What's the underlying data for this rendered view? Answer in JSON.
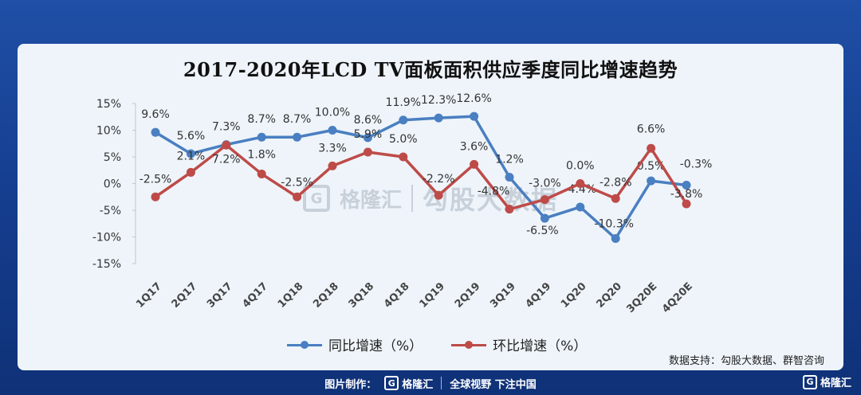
{
  "chart_data": {
    "type": "line",
    "title": "2017-2020年LCD TV面板面积供应季度同比增速趋势",
    "categories": [
      "1Q17",
      "2Q17",
      "3Q17",
      "4Q17",
      "1Q18",
      "2Q18",
      "3Q18",
      "4Q18",
      "1Q19",
      "2Q19",
      "3Q19",
      "4Q19",
      "1Q20",
      "2Q20",
      "3Q20E",
      "4Q20E"
    ],
    "series": [
      {
        "name": "同比增速（%）",
        "color": "#4a7fc1",
        "values": [
          9.6,
          5.6,
          7.3,
          8.7,
          8.7,
          10.0,
          8.6,
          11.9,
          12.3,
          12.6,
          1.2,
          -6.5,
          -4.4,
          -10.3,
          0.5,
          -0.3
        ],
        "labels": [
          "9.6%",
          "5.6%",
          "7.3%",
          "8.7%",
          "8.7%",
          "10.0%",
          "8.6%",
          "11.9%",
          "12.3%",
          "12.6%",
          "1.2%",
          "-6.5%",
          "-4.4%",
          "-10.3%",
          "0.5%",
          "-0.3%"
        ]
      },
      {
        "name": "环比增速（%）",
        "color": "#be4b48",
        "values": [
          -2.5,
          2.1,
          7.2,
          1.8,
          -2.5,
          3.3,
          5.9,
          5.0,
          -2.2,
          3.6,
          -4.8,
          -3.0,
          0.0,
          -2.8,
          6.6,
          -3.8
        ],
        "labels": [
          "-2.5%",
          "2.1%",
          "7.2%",
          "1.8%",
          "-2.5%",
          "3.3%",
          "5.9%",
          "5.0%",
          "-2.2%",
          "3.6%",
          "-4.8%",
          "-3.0%",
          "0.0%",
          "-2.8%",
          "6.6%",
          "-3.8%"
        ]
      }
    ],
    "ylim": [
      -15,
      15
    ],
    "yticks": [
      15,
      10,
      5,
      0,
      -5,
      -10,
      -15
    ],
    "ytick_labels": [
      "15%",
      "10%",
      "5%",
      "0%",
      "-5%",
      "-10%",
      "-15%"
    ],
    "grid": false,
    "legend": "bottom"
  },
  "source": "数据支持：勾股大数据、群智咨询",
  "watermark": {
    "brand": "格隆汇",
    "text": "勾股大数据",
    "mark": "G"
  },
  "footer": {
    "made_by": "图片制作：",
    "brand": "格隆汇",
    "slogan": "全球视野 下注中国",
    "mark": "G"
  },
  "corner_logo": {
    "brand": "格隆汇",
    "mark": "G"
  }
}
